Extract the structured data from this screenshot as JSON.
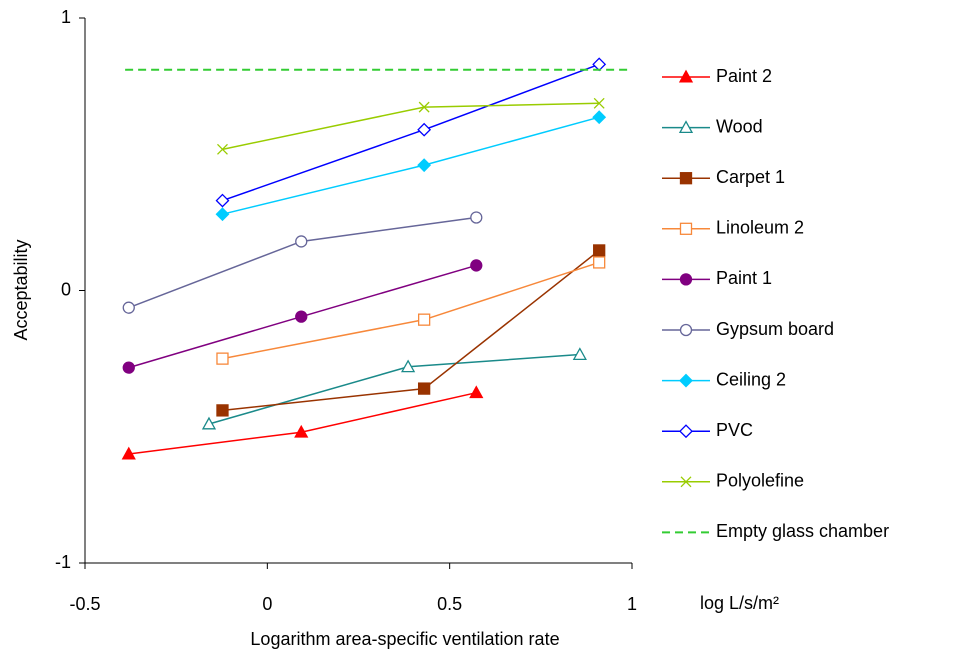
{
  "chart_data": {
    "type": "line",
    "x_label": "Logarithm area-specific ventilation rate",
    "x_unit": "log L/s/m²",
    "y_label": "Acceptability",
    "xlim": [
      -0.5,
      1
    ],
    "xticks": [
      -0.5,
      0,
      0.5,
      1
    ],
    "ylim": [
      -1,
      1
    ],
    "yticks": [
      -1,
      0,
      1
    ],
    "grid": false,
    "legend": "right",
    "series": [
      {
        "name": "Paint 2",
        "color": "#ff0000",
        "marker": "triangle",
        "filled": true,
        "x": [
          -0.38,
          0.093,
          0.573
        ],
        "values": [
          -0.6,
          -0.52,
          -0.375
        ]
      },
      {
        "name": "Wood",
        "color": "#1a8a8a",
        "marker": "triangle",
        "filled": false,
        "x": [
          -0.16,
          0.386,
          0.857
        ],
        "values": [
          -0.49,
          -0.28,
          -0.235
        ]
      },
      {
        "name": "Carpet 1",
        "color": "#993300",
        "marker": "square",
        "filled": true,
        "x": [
          -0.123,
          0.43,
          0.91
        ],
        "values": [
          -0.44,
          -0.36,
          0.147
        ]
      },
      {
        "name": "Linoleum 2",
        "color": "#f7883a",
        "marker": "square",
        "filled": false,
        "x": [
          -0.123,
          0.43,
          0.91
        ],
        "values": [
          -0.25,
          -0.107,
          0.103
        ]
      },
      {
        "name": "Paint 1",
        "color": "#800080",
        "marker": "circle",
        "filled": true,
        "x": [
          -0.38,
          0.093,
          0.573
        ],
        "values": [
          -0.283,
          -0.096,
          0.092
        ]
      },
      {
        "name": "Gypsum board",
        "color": "#666699",
        "marker": "circle",
        "filled": false,
        "x": [
          -0.38,
          0.093,
          0.573
        ],
        "values": [
          -0.063,
          0.18,
          0.268
        ]
      },
      {
        "name": "Ceiling 2",
        "color": "#00ccff",
        "marker": "diamond",
        "filled": true,
        "x": [
          -0.123,
          0.43,
          0.91
        ],
        "values": [
          0.28,
          0.46,
          0.636
        ]
      },
      {
        "name": "PVC",
        "color": "#0000ff",
        "marker": "diamond",
        "filled": false,
        "x": [
          -0.123,
          0.43,
          0.91
        ],
        "values": [
          0.33,
          0.59,
          0.83
        ]
      },
      {
        "name": "Polyolefine",
        "color": "#99cc00",
        "marker": "x",
        "filled": false,
        "x": [
          -0.123,
          0.43,
          0.91
        ],
        "values": [
          0.518,
          0.673,
          0.687
        ]
      },
      {
        "name": "Empty glass chamber",
        "color": "#33cc33",
        "marker": "none",
        "dashed": true,
        "x": [
          -0.39,
          1
        ],
        "values": [
          0.81,
          0.81
        ]
      }
    ]
  }
}
